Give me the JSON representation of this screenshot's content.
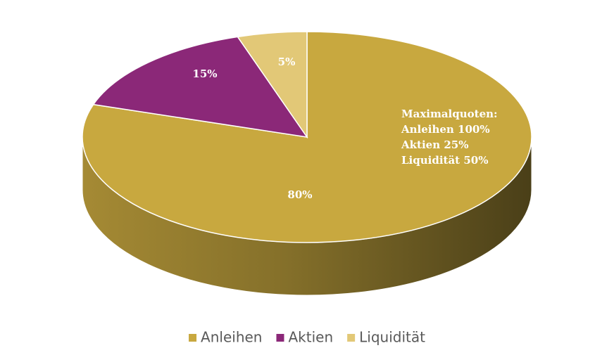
{
  "chart_data": {
    "type": "pie3d",
    "categories": [
      "Anleihen",
      "Aktien",
      "Liquidität"
    ],
    "values": [
      80,
      15,
      5
    ],
    "value_labels": [
      "80%",
      "15%",
      "5%"
    ],
    "colors": [
      "#c8a83f",
      "#8b2878",
      "#e2c877"
    ],
    "annotation": [
      "Maximalquoten:",
      "Anleihen 100%",
      "Aktien 25%",
      "Liquidität 50%"
    ],
    "legend": "bottom"
  }
}
